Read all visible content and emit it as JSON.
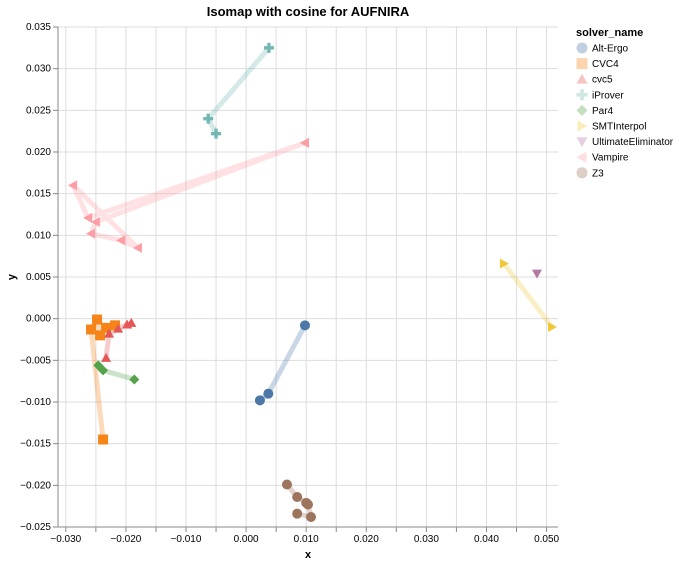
{
  "chart_data": {
    "type": "scatter",
    "title": "Isomap with cosine for AUFNIRA",
    "xlabel": "x",
    "ylabel": "y",
    "xlim": [
      -0.0313,
      0.0519
    ],
    "ylim": [
      -0.025,
      0.035
    ],
    "xticks": [
      -0.03,
      -0.02,
      -0.01,
      0.0,
      0.01,
      0.02,
      0.03,
      0.04,
      0.05
    ],
    "xtick_labels": [
      "−0.030",
      "−0.020",
      "−0.010",
      "0.000",
      "0.010",
      "0.020",
      "0.030",
      "0.040",
      "0.050"
    ],
    "yticks": [
      0.035,
      0.03,
      0.025,
      0.02,
      0.015,
      0.01,
      0.005,
      0.0,
      -0.005,
      -0.01,
      -0.015,
      -0.02,
      -0.025
    ],
    "ytick_labels": [
      "0.035",
      "0.030",
      "0.025",
      "0.020",
      "0.015",
      "0.010",
      "0.005",
      "0.000",
      "−0.005",
      "−0.010",
      "−0.015",
      "−0.020",
      "−0.025"
    ],
    "grid": true,
    "legend_title": "solver_name",
    "legend_placement": "right",
    "series": [
      {
        "name": "Alt-Ergo",
        "shape": "circle",
        "color": "#4c78a8",
        "points": [
          [
            0.0098,
            -0.0008
          ],
          [
            0.0037,
            -0.009
          ],
          [
            0.0023,
            -0.0098
          ]
        ]
      },
      {
        "name": "CVC4",
        "shape": "square",
        "color": "#f58518",
        "points": [
          [
            -0.0238,
            -0.0145
          ],
          [
            -0.0258,
            -0.0013
          ],
          [
            -0.0248,
            -0.0001
          ],
          [
            -0.0243,
            -0.002
          ],
          [
            -0.0233,
            -0.0011
          ],
          [
            -0.0218,
            -0.0008
          ]
        ]
      },
      {
        "name": "cvc5",
        "shape": "triangle-up",
        "color": "#e45756",
        "points": [
          [
            -0.0233,
            -0.0047
          ],
          [
            -0.0228,
            -0.0018
          ],
          [
            -0.0213,
            -0.0012
          ],
          [
            -0.0198,
            -0.0007
          ],
          [
            -0.0191,
            -0.0005
          ]
        ]
      },
      {
        "name": "iProver",
        "shape": "cross",
        "color": "#72b7b2",
        "points": [
          [
            0.0038,
            0.0325
          ],
          [
            -0.0063,
            0.024
          ],
          [
            -0.005,
            0.0222
          ]
        ]
      },
      {
        "name": "Par4",
        "shape": "diamond",
        "color": "#54a24b",
        "points": [
          [
            -0.0246,
            -0.0056
          ],
          [
            -0.0238,
            -0.0062
          ],
          [
            -0.0186,
            -0.0073
          ]
        ]
      },
      {
        "name": "SMTInterpol",
        "shape": "triangle-right",
        "color": "#eeca3b",
        "points": [
          [
            0.0429,
            0.0066
          ],
          [
            0.0509,
            -0.001
          ]
        ]
      },
      {
        "name": "UltimateEliminator",
        "shape": "triangle-down",
        "color": "#b279a2",
        "points": [
          [
            0.0484,
            0.0054
          ]
        ]
      },
      {
        "name": "Vampire",
        "shape": "triangle-left",
        "color": "#ff9da6",
        "points": [
          [
            0.0098,
            0.0211
          ],
          [
            -0.0263,
            0.0121
          ],
          [
            -0.0288,
            0.016
          ],
          [
            -0.018,
            0.0085
          ],
          [
            -0.0208,
            0.0094
          ],
          [
            -0.0258,
            0.0102
          ],
          [
            -0.025,
            0.0116
          ],
          [
            0.0098,
            0.0211
          ]
        ]
      },
      {
        "name": "Z3",
        "shape": "circle",
        "color": "#9d755d",
        "points": [
          [
            0.0068,
            -0.0199
          ],
          [
            0.0085,
            -0.0214
          ],
          [
            0.01,
            -0.0221
          ],
          [
            0.0103,
            -0.0223
          ],
          [
            0.0108,
            -0.0238
          ],
          [
            0.0085,
            -0.0234
          ]
        ]
      }
    ]
  }
}
